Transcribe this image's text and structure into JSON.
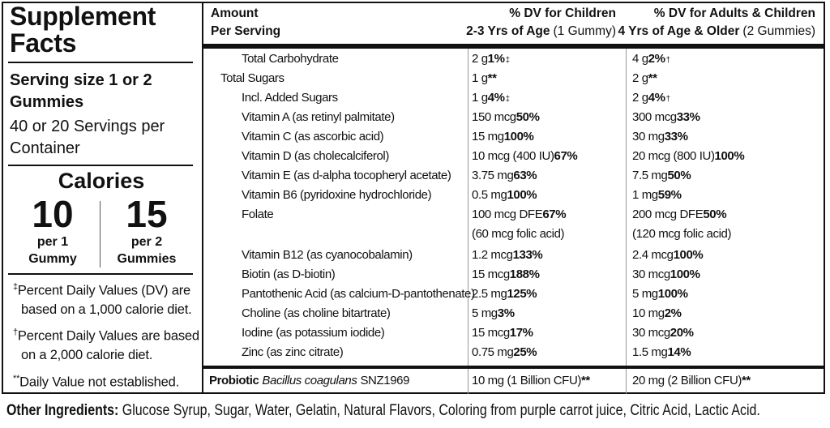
{
  "left": {
    "title": "Supplement Facts",
    "serving_size": "Serving size 1 or 2 Gummies",
    "servings": "40 or 20 Servings per Container",
    "calories_label": "Calories",
    "calories": [
      {
        "amount": "10",
        "per": "per 1 Gummy"
      },
      {
        "amount": "15",
        "per": "per 2 Gummies"
      }
    ],
    "footnotes": [
      {
        "mark": "‡",
        "text": "Percent Daily Values (DV) are based on a 1,000 calorie diet."
      },
      {
        "mark": "†",
        "text": "Percent Daily Values are based on a 2,000 calorie diet."
      },
      {
        "mark": "**",
        "text": "Daily Value not established."
      }
    ]
  },
  "table": {
    "headers": {
      "amount": [
        "Amount",
        "Per Serving"
      ],
      "children": {
        "line1": "% DV for Children",
        "line2": "2-3 Yrs of Age",
        "line2_note": "(1 Gummy)"
      },
      "adults": {
        "line1": "% DV for Adults & Children",
        "line2": "4 Yrs of Age & Older",
        "line2_note": "(2 Gummies)"
      }
    },
    "rows": [
      {
        "name": "Total Carbohydrate",
        "child_amount": "2 g",
        "child_dv": "1%",
        "child_mark": "‡",
        "adult_amount": "4 g",
        "adult_dv": "2%",
        "adult_mark": "†",
        "subrows": [
          {
            "name": "Total Sugars",
            "child_amount": "1 g",
            "child_dv": "**",
            "adult_amount": "2 g",
            "adult_dv": "**",
            "subrows": [
              {
                "name": "Incl. Added Sugars",
                "child_amount": "1 g",
                "child_dv": "4%",
                "child_mark": "‡",
                "adult_amount": "2 g",
                "adult_dv": "4%",
                "adult_mark": "†"
              }
            ]
          }
        ]
      },
      {
        "name": "Vitamin A (as retinyl palmitate)",
        "child_amount": "150 mcg",
        "child_dv": "50%",
        "adult_amount": "300 mcg",
        "adult_dv": "33%"
      },
      {
        "name": "Vitamin C (as ascorbic acid)",
        "child_amount": "15 mg",
        "child_dv": "100%",
        "adult_amount": "30 mg",
        "adult_dv": "33%"
      },
      {
        "name": "Vitamin D (as cholecalciferol)",
        "child_amount": "10 mcg (400 IU)",
        "child_dv": "67%",
        "adult_amount": "20 mcg (800 IU)",
        "adult_dv": "100%"
      },
      {
        "name": "Vitamin E (as d-alpha tocopheryl acetate)",
        "child_amount": "3.75 mg",
        "child_dv": "63%",
        "adult_amount": "7.5 mg",
        "adult_dv": "50%"
      },
      {
        "name": "Vitamin B6 (pyridoxine hydrochloride)",
        "child_amount": "0.5 mg",
        "child_dv": "100%",
        "adult_amount": "1 mg",
        "adult_dv": "59%"
      },
      {
        "name": "Folate",
        "child_amount": "100 mcg DFE",
        "child_amount_note": "(60 mcg folic acid)",
        "child_dv": "67%",
        "adult_amount": "200 mcg DFE",
        "adult_amount_note": "(120 mcg folic acid)",
        "adult_dv": "50%"
      },
      {
        "name": "Vitamin B12 (as cyanocobalamin)",
        "child_amount": "1.2 mcg",
        "child_dv": "133%",
        "adult_amount": "2.4 mcg",
        "adult_dv": "100%"
      },
      {
        "name": "Biotin (as D-biotin)",
        "child_amount": "15 mcg",
        "child_dv": "188%",
        "adult_amount": "30 mcg",
        "adult_dv": "100%"
      },
      {
        "name": "Pantothenic Acid (as calcium-D-pantothenate)",
        "child_amount": "2.5 mg",
        "child_dv": "125%",
        "adult_amount": "5 mg",
        "adult_dv": "100%"
      },
      {
        "name": "Choline (as choline bitartrate)",
        "child_amount": "5 mg",
        "child_dv": "3%",
        "adult_amount": "10 mg",
        "adult_dv": "2%"
      },
      {
        "name": "Iodine (as potassium iodide)",
        "child_amount": "15 mcg",
        "child_dv": "17%",
        "adult_amount": "30 mcg",
        "adult_dv": "20%"
      },
      {
        "name": "Zinc (as zinc citrate)",
        "child_amount": "0.75 mg",
        "child_dv": "25%",
        "adult_amount": "1.5 mg",
        "adult_dv": "14%"
      }
    ],
    "probiotic": {
      "name": "Probiotic",
      "species": "Bacillus coagulans",
      "strain": "SNZ1969",
      "child_amount": "10 mg (1 Billion CFU)",
      "child_dv": "**",
      "adult_amount": "20 mg (2 Billion CFU)",
      "adult_dv": "**"
    }
  },
  "ingredients": {
    "label": "Other Ingredients:",
    "text": "Glucose Syrup, Sugar, Water, Gelatin, Natural Flavors, Coloring from purple carrot juice, Citric Acid, Lactic Acid."
  }
}
